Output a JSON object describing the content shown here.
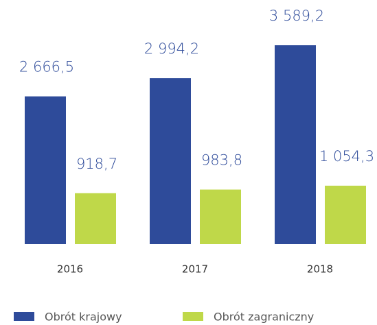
{
  "chart_data": {
    "type": "bar",
    "categories": [
      "2016",
      "2017",
      "2018"
    ],
    "series": [
      {
        "name": "Obrót krajowy",
        "color": "#2e4b9a",
        "values": [
          2666.5,
          2994.2,
          3589.2
        ],
        "value_labels": [
          "2 666,5",
          "2 994,2",
          "3 589,2"
        ]
      },
      {
        "name": "Obrót zagraniczny",
        "color": "#bfd849",
        "values": [
          918.7,
          983.8,
          1054.3
        ],
        "value_labels": [
          "918,7",
          "983,8",
          "1 054,3"
        ]
      }
    ]
  }
}
